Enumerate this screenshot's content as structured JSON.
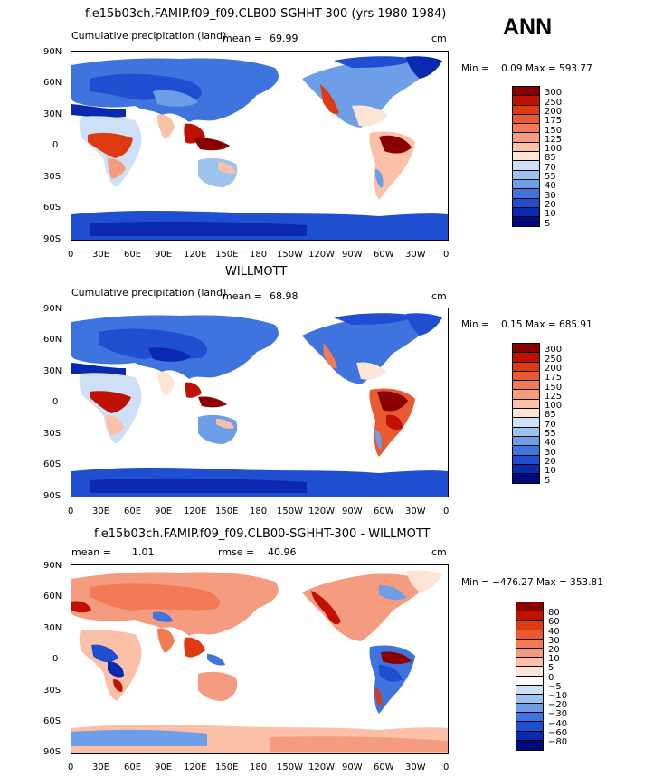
{
  "panel_ann": "ANN",
  "panels": [
    {
      "title": "f.e15b03ch.FAMIP.f09_f09.CLB00-SGHHT-300 (yrs 1980-1984)",
      "left_label": "Cumulative precipitation (land)",
      "stat1_label": "mean =",
      "stat1_value": "69.99",
      "units": "cm",
      "minmax": "Min =    0.09 Max = 593.77",
      "legend_values": [
        "300",
        "250",
        "200",
        "175",
        "150",
        "125",
        "100",
        "85",
        "70",
        "55",
        "40",
        "30",
        "20",
        "10",
        "5"
      ],
      "legend_colors": [
        "#8a0000",
        "#c01000",
        "#dd3a10",
        "#ea5a30",
        "#f27a55",
        "#f59c80",
        "#fac0a8",
        "#fde5d5",
        "#cde0f6",
        "#9cc2ef",
        "#6e9ee8",
        "#3f73dd",
        "#1f4fd0",
        "#0a28b0",
        "#000a7d"
      ]
    },
    {
      "title": "WILLMOTT",
      "left_label": "Cumulative precipitation (land)",
      "stat1_label": "mean =",
      "stat1_value": "68.98",
      "units": "cm",
      "minmax": "Min =    0.15 Max = 685.91",
      "legend_values": [
        "300",
        "250",
        "200",
        "175",
        "150",
        "125",
        "100",
        "85",
        "70",
        "55",
        "40",
        "30",
        "20",
        "10",
        "5"
      ],
      "legend_colors": [
        "#8a0000",
        "#c01000",
        "#dd3a10",
        "#ea5a30",
        "#f27a55",
        "#f59c80",
        "#fac0a8",
        "#fde5d5",
        "#cde0f6",
        "#9cc2ef",
        "#6e9ee8",
        "#3f73dd",
        "#1f4fd0",
        "#0a28b0",
        "#000a7d"
      ]
    },
    {
      "title": "f.e15b03ch.FAMIP.f09_f09.CLB00-SGHHT-300 - WILLMOTT",
      "stat1_label": "mean =",
      "stat1_value": "1.01",
      "stat2_label": "rmse =",
      "stat2_value": "40.96",
      "units": "cm",
      "minmax": "Min = −476.27 Max = 353.81",
      "legend_values": [
        "80",
        "60",
        "40",
        "30",
        "20",
        "10",
        "5",
        "0",
        "−5",
        "−10",
        "−20",
        "−30",
        "−40",
        "−60",
        "−80"
      ],
      "legend_colors": [
        "#8a0000",
        "#c01000",
        "#dd3a10",
        "#ea5a30",
        "#f27a55",
        "#f59c80",
        "#fac0a8",
        "#fde5d5",
        "#ffffff",
        "#cde0f6",
        "#9cc2ef",
        "#6e9ee8",
        "#3f73dd",
        "#1f4fd0",
        "#0a28b0",
        "#000a7d"
      ]
    }
  ],
  "lat_labels": [
    "90N",
    "60N",
    "30N",
    "0",
    "30S",
    "60S",
    "90S"
  ],
  "lon_labels": [
    "0",
    "30E",
    "60E",
    "90E",
    "120E",
    "150E",
    "180",
    "150W",
    "120W",
    "90W",
    "60W",
    "30W",
    "0"
  ]
}
